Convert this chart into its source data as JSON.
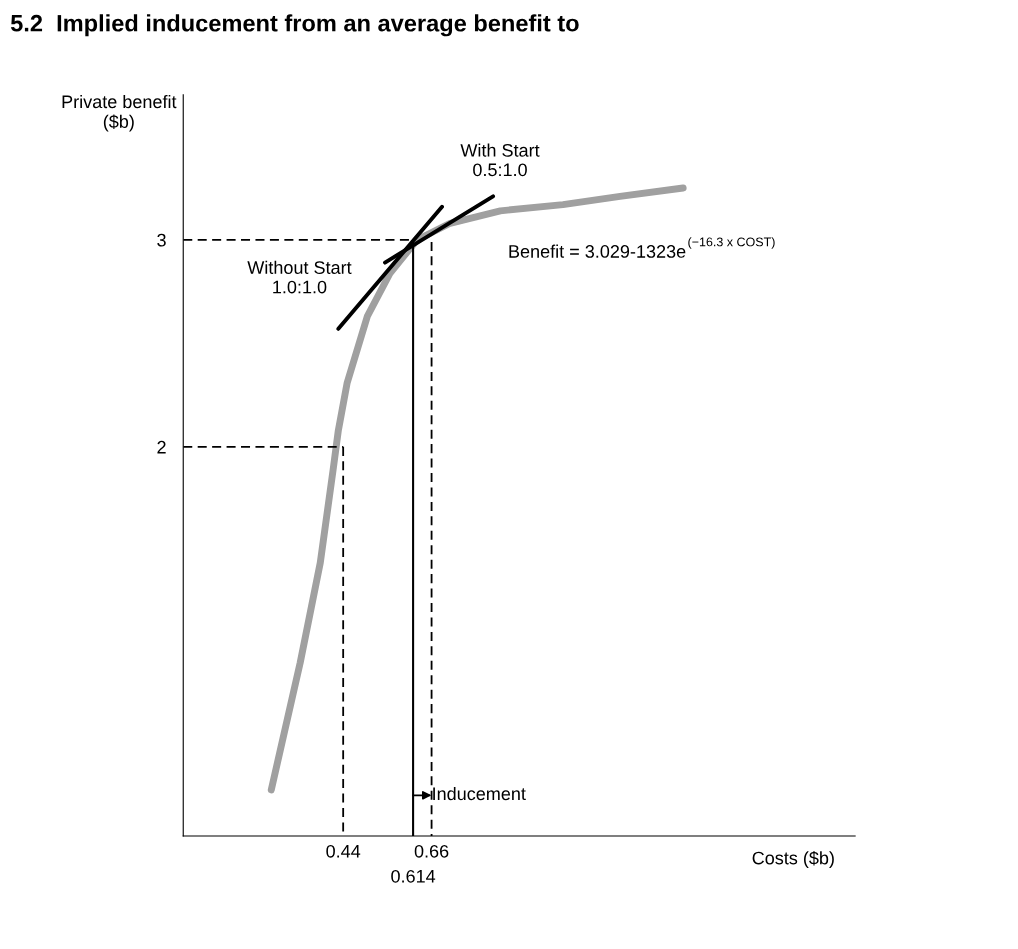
{
  "chart_data": {
    "type": "line",
    "title": "5.2  Implied inducement from an average benefit to",
    "xlabel": "Costs ($b)",
    "ylabel": "Private benefit\n($b)",
    "xlim": [
      0.042,
      1.714
    ],
    "ylim": [
      0.12,
      3.7
    ],
    "xticks": [
      0.44,
      0.66
    ],
    "yticks": [
      2,
      3
    ],
    "grid": false,
    "legend": false,
    "marker": "none",
    "series": [
      {
        "color": "#a0a0a0",
        "line_style": "solid",
        "x": [
          0.261,
          0.333,
          0.383,
          0.415,
          0.428,
          0.45,
          0.5,
          0.557,
          0.624,
          0.706,
          0.831,
          0.987,
          1.129,
          1.286
        ],
        "values": [
          0.343,
          0.957,
          1.44,
          1.89,
          2.08,
          2.31,
          2.63,
          2.84,
          3.0,
          3.08,
          3.14,
          3.17,
          3.21,
          3.25
        ]
      },
      {
        "color": "#000000",
        "line_style": "solid",
        "x": [
          0.428,
          0.686
        ],
        "values": [
          2.57,
          3.16
        ]
      },
      {
        "color": "#000000",
        "line_style": "solid",
        "x": [
          0.544,
          0.813
        ],
        "values": [
          2.89,
          3.21
        ]
      },
      {
        "color": "#000000",
        "line_style": "dashed",
        "x": [
          0.042,
          0.606
        ],
        "values": [
          3.0,
          3.0
        ]
      },
      {
        "color": "#000000",
        "line_style": "dashed",
        "x": [
          0.042,
          0.44
        ],
        "values": [
          2.0,
          2.0
        ]
      },
      {
        "color": "#000000",
        "line_style": "dashed",
        "x": [
          0.44,
          0.44
        ],
        "values": [
          2.0,
          0.12
        ]
      },
      {
        "color": "#000000",
        "line_style": "dashed",
        "x": [
          0.66,
          0.66
        ],
        "values": [
          2.99,
          0.12
        ]
      },
      {
        "color": "#000000",
        "line_style": "solid",
        "x": [
          0.614,
          0.614
        ],
        "values": [
          2.98,
          0.12
        ]
      }
    ],
    "annotations": [
      "Without Start\n1.0:1.0",
      "With Start\n0.5:1.0",
      "Benefit = 3.029-1323e$^{(−16.3 x COST)}$",
      "Inducement",
      "0.614"
    ]
  }
}
